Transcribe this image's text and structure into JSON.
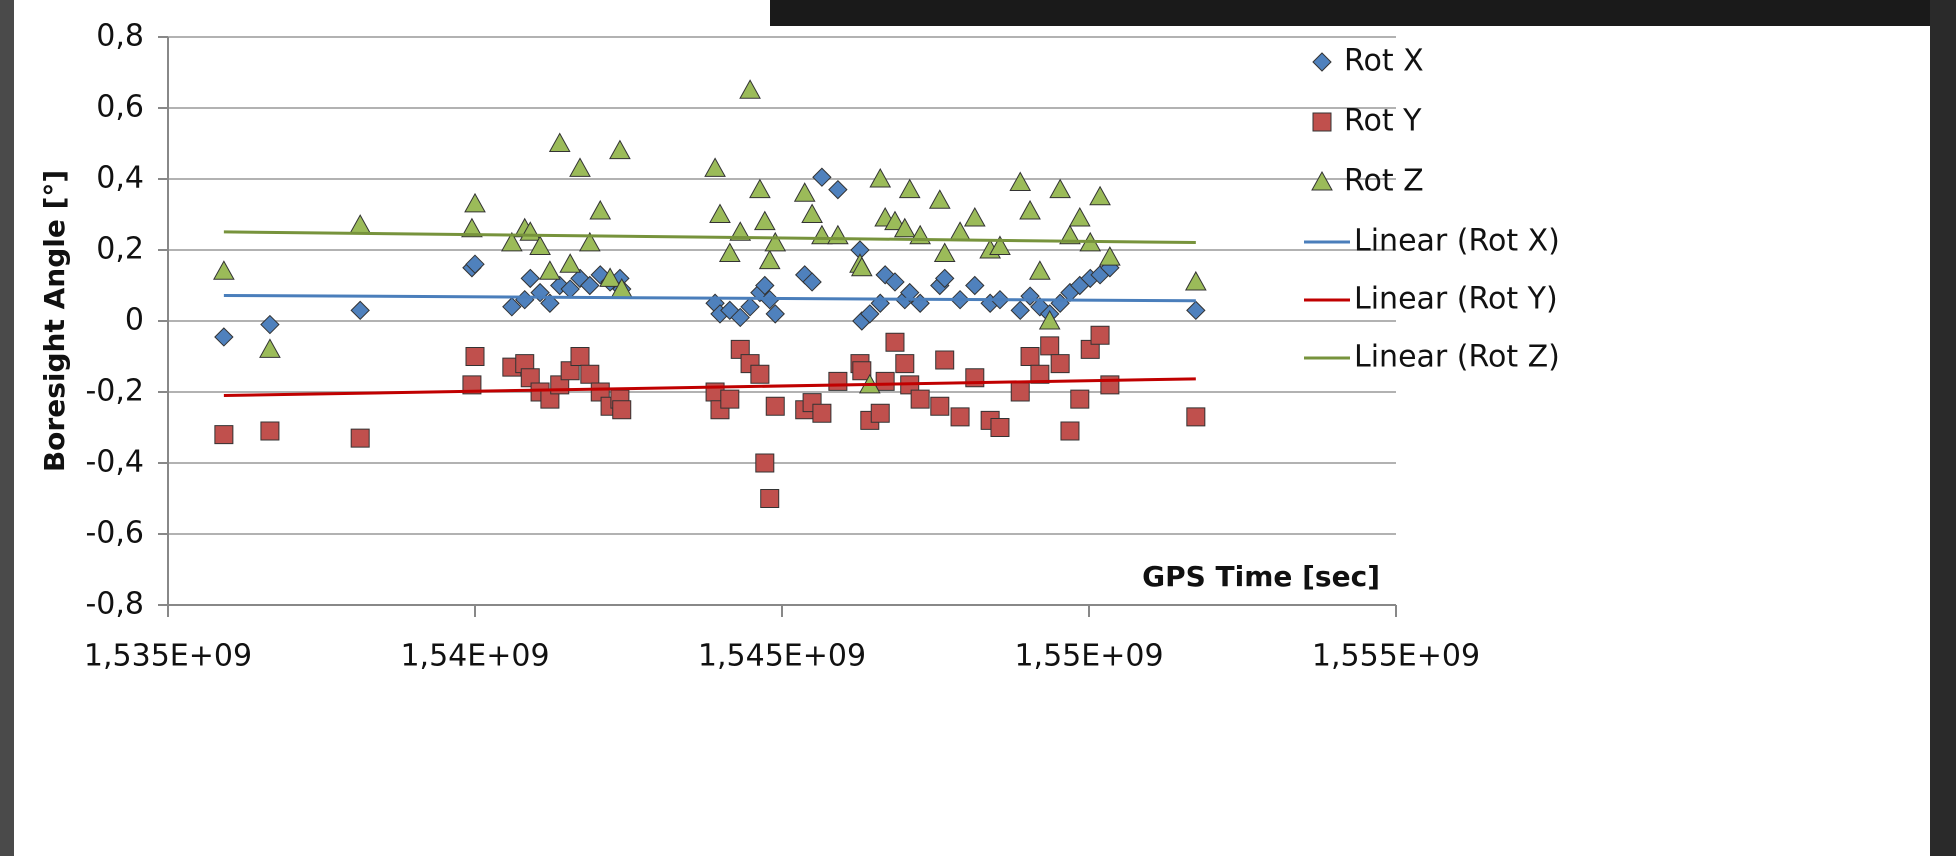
{
  "chart_data": {
    "type": "scatter",
    "xlabel": "GPS Time [sec]",
    "ylabel": "Boresight Angle [°]",
    "xlim": [
      1535000000,
      1555000000
    ],
    "ylim": [
      -0.8,
      0.8
    ],
    "xticks": [
      {
        "value": 1535000000,
        "label": "1,535E+09"
      },
      {
        "value": 1540000000,
        "label": "1,54E+09"
      },
      {
        "value": 1545000000,
        "label": "1,545E+09"
      },
      {
        "value": 1550000000,
        "label": "1,55E+09"
      },
      {
        "value": 1555000000,
        "label": "1,555E+09"
      }
    ],
    "yticks": [
      {
        "value": -0.8,
        "label": "-0,8"
      },
      {
        "value": -0.6,
        "label": "-0,6"
      },
      {
        "value": -0.4,
        "label": "-0,4"
      },
      {
        "value": -0.2,
        "label": "-0,2"
      },
      0,
      {
        "value": 0.2,
        "label": "0,2"
      },
      {
        "value": 0.4,
        "label": "0,4"
      },
      {
        "value": 0.6,
        "label": "0,6"
      },
      {
        "value": 0.8,
        "label": "0,8"
      }
    ],
    "grid": true,
    "legend": "right",
    "x": [
      1535910000,
      1536660000,
      1538130000,
      1539950000,
      1540000000,
      1540600000,
      1540810000,
      1540900000,
      1541060000,
      1541220000,
      1541380000,
      1541550000,
      1541710000,
      1541870000,
      1542040000,
      1542200000,
      1542360000,
      1542390000,
      1543910000,
      1543990000,
      1544150000,
      1544320000,
      1544480000,
      1544640000,
      1544720000,
      1544800000,
      1544890000,
      1545370000,
      1545490000,
      1545650000,
      1545910000,
      1546270000,
      1546300000,
      1546430000,
      1546600000,
      1546680000,
      1546840000,
      1547000000,
      1547080000,
      1547250000,
      1547570000,
      1547650000,
      1547900000,
      1548140000,
      1548390000,
      1548550000,
      1548880000,
      1549040000,
      1549200000,
      1549360000,
      1549530000,
      1549690000,
      1549850000,
      1550020000,
      1550180000,
      1550340000,
      1551740000
    ],
    "series": [
      {
        "name": "Rot X",
        "color": "#4f81bd",
        "marker": "diamond",
        "values": [
          -0.045,
          -0.01,
          0.03,
          0.15,
          0.16,
          0.04,
          0.06,
          0.12,
          0.08,
          0.05,
          0.1,
          0.09,
          0.12,
          0.1,
          0.13,
          0.11,
          0.12,
          0.09,
          0.05,
          0.02,
          0.03,
          0.01,
          0.04,
          0.08,
          0.1,
          0.06,
          0.02,
          0.13,
          0.11,
          0.405,
          0.37,
          0.2,
          0.0,
          0.02,
          0.05,
          0.13,
          0.11,
          0.06,
          0.08,
          0.05,
          0.1,
          0.12,
          0.06,
          0.1,
          0.05,
          0.06,
          0.03,
          0.07,
          0.04,
          0.02,
          0.05,
          0.08,
          0.1,
          0.12,
          0.13,
          0.15,
          0.03
        ]
      },
      {
        "name": "Rot Y",
        "color": "#c0504d",
        "marker": "square",
        "values": [
          -0.32,
          -0.31,
          -0.33,
          -0.18,
          -0.1,
          -0.13,
          -0.12,
          -0.16,
          -0.2,
          -0.22,
          -0.18,
          -0.14,
          -0.1,
          -0.15,
          -0.2,
          -0.24,
          -0.22,
          -0.25,
          -0.2,
          -0.25,
          -0.22,
          -0.08,
          -0.12,
          -0.15,
          -0.4,
          -0.5,
          -0.24,
          -0.25,
          -0.23,
          -0.26,
          -0.17,
          -0.12,
          -0.14,
          -0.28,
          -0.26,
          -0.17,
          -0.06,
          -0.12,
          -0.18,
          -0.22,
          -0.24,
          -0.11,
          -0.27,
          -0.16,
          -0.28,
          -0.3,
          -0.2,
          -0.1,
          -0.15,
          -0.07,
          -0.12,
          -0.31,
          -0.22,
          -0.08,
          -0.04,
          -0.18,
          -0.27
        ]
      },
      {
        "name": "Rot Z",
        "color": "#9bbb59",
        "marker": "triangle",
        "values": [
          0.14,
          -0.08,
          0.27,
          0.26,
          0.33,
          0.22,
          0.26,
          0.25,
          0.21,
          0.14,
          0.5,
          0.16,
          0.43,
          0.22,
          0.31,
          0.12,
          0.48,
          0.09,
          0.43,
          0.3,
          0.19,
          0.25,
          0.65,
          0.37,
          0.28,
          0.17,
          0.22,
          0.36,
          0.3,
          0.24,
          0.24,
          0.16,
          0.15,
          -0.18,
          0.4,
          0.29,
          0.28,
          0.26,
          0.37,
          0.24,
          0.34,
          0.19,
          0.25,
          0.29,
          0.2,
          0.21,
          0.39,
          0.31,
          0.14,
          0.0,
          0.37,
          0.24,
          0.29,
          0.22,
          0.35,
          0.18,
          0.11
        ]
      }
    ],
    "trendlines": [
      {
        "name": "Linear (Rot X)",
        "color": "#4a7ebb",
        "x": [
          1535910000,
          1551740000
        ],
        "values": [
          0.072,
          0.057
        ]
      },
      {
        "name": "Linear (Rot Y)",
        "color": "#c00000",
        "x": [
          1535910000,
          1551740000
        ],
        "values": [
          -0.21,
          -0.163
        ]
      },
      {
        "name": "Linear (Rot Z)",
        "color": "#77933c",
        "x": [
          1535910000,
          1551740000
        ],
        "values": [
          0.251,
          0.221
        ]
      }
    ]
  }
}
